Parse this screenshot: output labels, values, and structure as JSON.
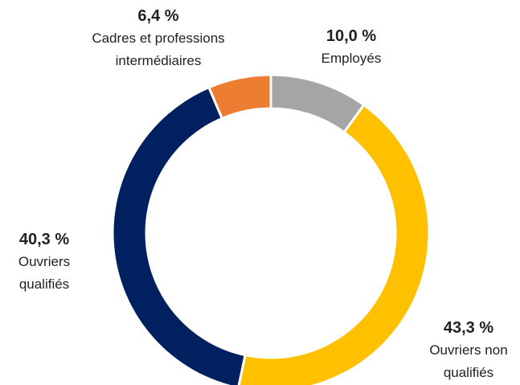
{
  "chart_data": {
    "type": "donut",
    "categories": [
      "Employés",
      "Ouvriers non qualifiés",
      "Ouvriers qualifiés",
      "Cadres et professions intermédiaires"
    ],
    "values": [
      10.0,
      43.3,
      40.3,
      6.4
    ],
    "value_labels": [
      "10,0 %",
      "43,3 %",
      "40,3 %",
      "6,4 %"
    ],
    "colors": [
      "#a5a5a5",
      "#ffc000",
      "#002060",
      "#ed7d31"
    ]
  }
}
